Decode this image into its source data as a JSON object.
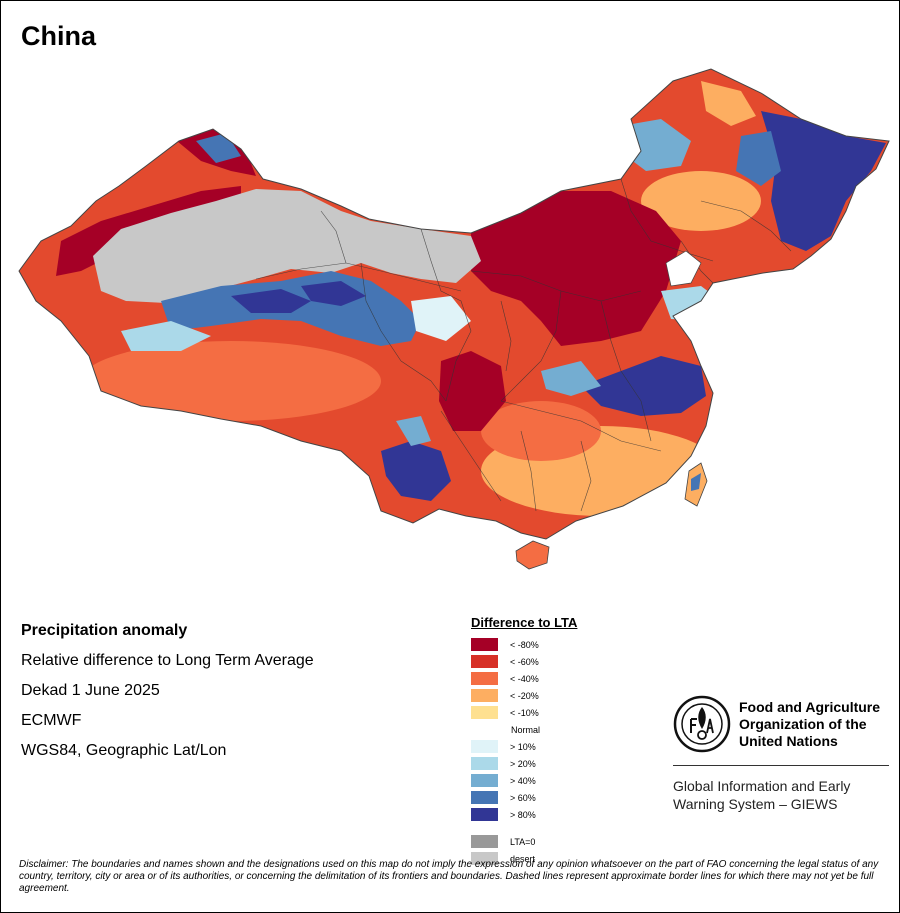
{
  "title": "China",
  "info": {
    "line1": "Precipitation anomaly",
    "line2": "Relative difference to Long Term Average",
    "line3": "Dekad 1 June 2025",
    "line4": "ECMWF",
    "line5": "WGS84, Geographic Lat/Lon"
  },
  "legend": {
    "title": "Difference to LTA",
    "items": [
      {
        "label": "< -80%",
        "color": "#a50026"
      },
      {
        "label": "< -60%",
        "color": "#d73027"
      },
      {
        "label": "< -40%",
        "color": "#f46d43"
      },
      {
        "label": "< -20%",
        "color": "#fdae61"
      },
      {
        "label": "< -10%",
        "color": "#fee090"
      }
    ],
    "normal_label": "Normal",
    "items_wet": [
      {
        "label": "> 10%",
        "color": "#e0f3f8"
      },
      {
        "label": "> 20%",
        "color": "#abd9e9"
      },
      {
        "label": "> 40%",
        "color": "#74add1"
      },
      {
        "label": "> 60%",
        "color": "#4575b4"
      },
      {
        "label": "> 80%",
        "color": "#313695"
      }
    ],
    "lta_zero": {
      "label": "LTA=0",
      "color": "#999999"
    },
    "desert": {
      "label": "desert",
      "color": "#c8c8c8"
    }
  },
  "fao": {
    "name_line1": "Food and Agriculture",
    "name_line2": "Organization of the",
    "name_line3": "United Nations",
    "giews_line1": "Global Information and Early",
    "giews_line2": "Warning System – GIEWS"
  },
  "disclaimer": "Disclaimer: The boundaries and names shown and the designations used on this map do not imply the expression of any opinion whatsoever on the part of FAO concerning the legal status of any country, territory, city or area or of its authorities, or concerning the delimitation of its frontiers and boundaries. Dashed lines represent approximate border lines for which there may not yet be full agreement."
}
